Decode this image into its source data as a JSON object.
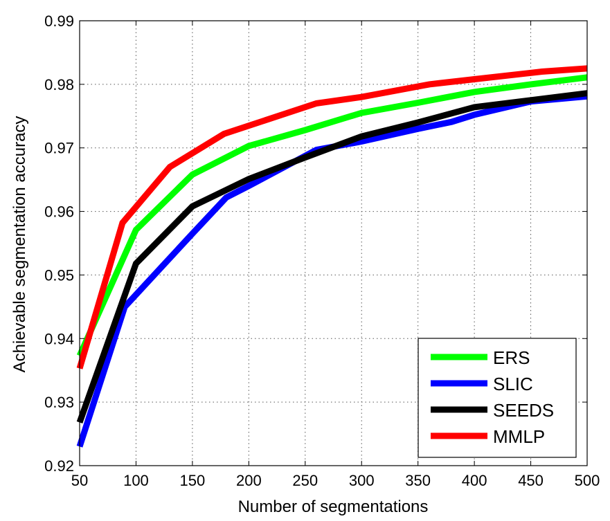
{
  "chart_data": {
    "type": "line",
    "title": "",
    "xlabel": "Number of segmentations",
    "ylabel": "Achievable segmentation accuracy",
    "xlim": [
      50,
      500
    ],
    "ylim": [
      0.92,
      0.99
    ],
    "xticks": [
      50,
      100,
      150,
      200,
      250,
      300,
      350,
      400,
      450,
      500
    ],
    "yticks": [
      0.92,
      0.93,
      0.94,
      0.95,
      0.96,
      0.97,
      0.98,
      0.99
    ],
    "xtick_labels": [
      "50",
      "100",
      "150",
      "200",
      "250",
      "300",
      "350",
      "400",
      "450",
      "500"
    ],
    "ytick_labels": [
      "0.92",
      "0.93",
      "0.94",
      "0.95",
      "0.96",
      "0.97",
      "0.98",
      "0.99"
    ],
    "grid": true,
    "legend_position": "bottom-right",
    "series": [
      {
        "name": "ERS",
        "color": "#00ff00",
        "x": [
          50,
          100,
          150,
          200,
          250,
          300,
          350,
          400,
          450,
          500
        ],
        "y": [
          0.9373,
          0.9571,
          0.9658,
          0.9703,
          0.9728,
          0.9755,
          0.9771,
          0.9788,
          0.98,
          0.9811
        ]
      },
      {
        "name": "SLIC",
        "color": "#0000ff",
        "x": [
          50,
          90,
          150,
          180,
          200,
          260,
          300,
          350,
          380,
          400,
          450,
          500
        ],
        "y": [
          0.923,
          0.945,
          0.9565,
          0.9622,
          0.964,
          0.9697,
          0.971,
          0.973,
          0.9741,
          0.9752,
          0.9773,
          0.9781
        ]
      },
      {
        "name": "SEEDS",
        "color": "#000000",
        "x": [
          50,
          100,
          150,
          200,
          250,
          300,
          350,
          400,
          450,
          500
        ],
        "y": [
          0.9268,
          0.9518,
          0.9608,
          0.9651,
          0.9685,
          0.9718,
          0.974,
          0.9764,
          0.9775,
          0.9786
        ]
      },
      {
        "name": "MMLP",
        "color": "#ff0000",
        "x": [
          50,
          88,
          130,
          178,
          260,
          300,
          360,
          400,
          460,
          500
        ],
        "y": [
          0.9353,
          0.9582,
          0.967,
          0.9722,
          0.977,
          0.978,
          0.98,
          0.9808,
          0.982,
          0.9825
        ]
      }
    ]
  }
}
